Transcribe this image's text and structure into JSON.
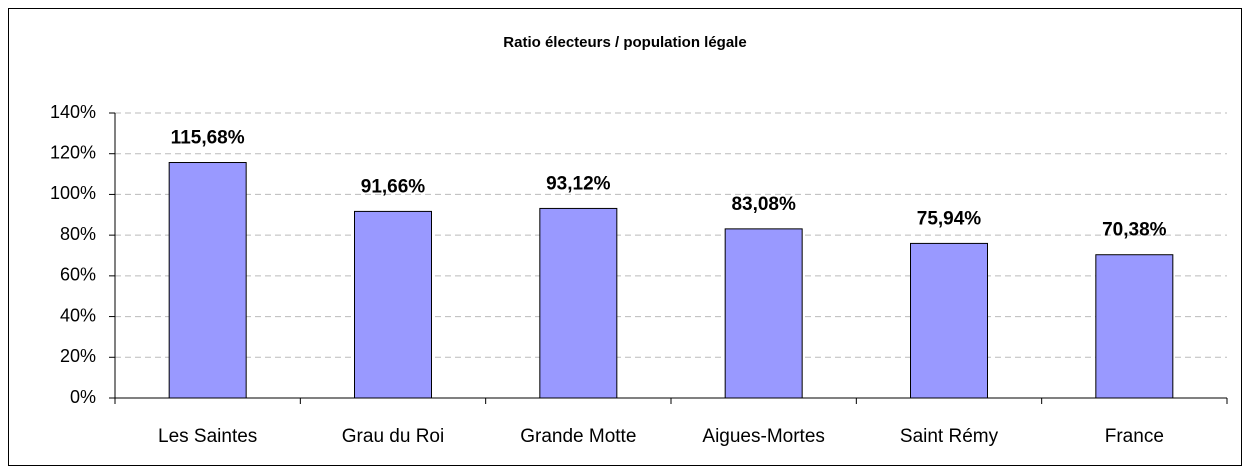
{
  "chart_data": {
    "type": "bar",
    "title": "Ratio  électeurs / population légale",
    "categories": [
      "Les Saintes",
      "Grau du Roi",
      "Grande Motte",
      "Aigues-Mortes",
      "Saint Rémy",
      "France"
    ],
    "values": [
      115.68,
      91.66,
      93.12,
      83.08,
      75.94,
      70.38
    ],
    "value_labels": [
      "115,68%",
      "91,66%",
      "93,12%",
      "83,08%",
      "75,94%",
      "70,38%"
    ],
    "color": "#9999ff",
    "ylim": [
      0,
      140
    ],
    "yticks": [
      {
        "value": 0,
        "label": "0%"
      },
      {
        "value": 20,
        "label": "20%"
      },
      {
        "value": 40,
        "label": "40%"
      },
      {
        "value": 60,
        "label": "60%"
      },
      {
        "value": 80,
        "label": "80%"
      },
      {
        "value": 100,
        "label": "100%"
      },
      {
        "value": 120,
        "label": "120%"
      },
      {
        "value": 140,
        "label": "140%"
      }
    ],
    "grid": true
  }
}
